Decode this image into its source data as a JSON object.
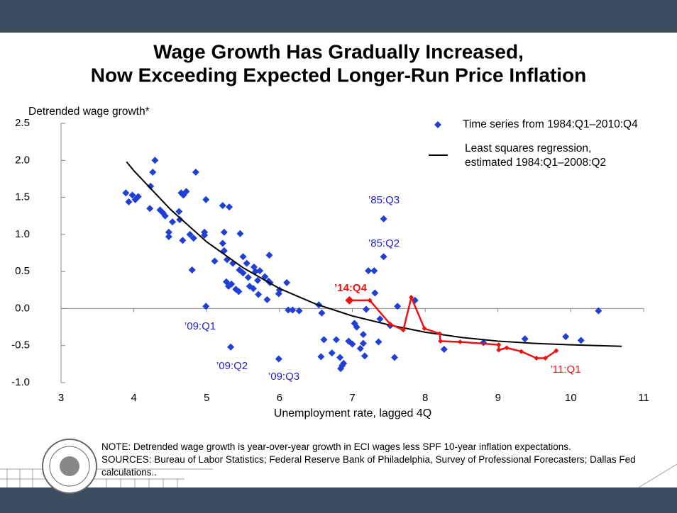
{
  "chart_data": {
    "type": "scatter",
    "title": [
      "Wage Growth Has Gradually Increased,",
      "Now Exceeding Expected Longer-Run Price Inflation"
    ],
    "y_label": "Detrended wage growth*",
    "x_label": "Unemployment rate, lagged 4Q",
    "note": "NOTE: Detrended wage growth is year-over-year growth in ECI wages less SPF 10-year inflation expectations.",
    "sources": "SOURCES: Bureau of Labor Statistics; Federal Reserve Bank of Philadelphia, Survey of Professional Forecasters; Dallas Fed calculations..",
    "xlim": [
      3,
      11
    ],
    "xticks": [
      3,
      4,
      5,
      6,
      7,
      8,
      9,
      10,
      11
    ],
    "ylim": [
      -1.0,
      2.5
    ],
    "yticks": [
      2.5,
      {
        "value": 2,
        "label": "2.0"
      },
      1.5,
      {
        "value": 1,
        "label": "1.0"
      },
      0.5,
      {
        "value": 0,
        "label": "0.0"
      },
      -0.5,
      {
        "value": -1,
        "label": "-1.0"
      }
    ],
    "series": [
      {
        "name": "Time series from 1984:Q1–2010:Q4",
        "mode": "markers",
        "color": "#1f3fd6",
        "x": [
          3.89,
          3.93,
          3.98,
          4.02,
          4.06,
          4.29,
          4.26,
          4.23,
          4.22,
          4.36,
          4.4,
          4.43,
          4.48,
          4.48,
          4.53,
          4.63,
          4.62,
          4.65,
          4.72,
          4.68,
          4.67,
          4.85,
          4.77,
          4.8,
          4.82,
          4.97,
          4.97,
          4.99,
          4.99,
          5.11,
          5.22,
          5.22,
          5.24,
          5.24,
          5.28,
          5.31,
          5.27,
          5.3,
          5.34,
          5.36,
          5.33,
          5.4,
          5.44,
          5.45,
          5.46,
          5.5,
          5.5,
          5.55,
          5.57,
          5.59,
          5.64,
          5.65,
          5.67,
          5.7,
          5.71,
          5.73,
          5.8,
          5.83,
          5.85,
          5.86,
          5.87,
          5.99,
          6.0,
          5.99,
          6.1,
          6.12,
          6.18,
          6.27,
          6.54,
          6.58,
          6.61,
          6.57,
          6.72,
          6.78,
          6.83,
          6.84,
          6.86,
          6.88,
          6.95,
          7.0,
          7.03,
          7.06,
          7.11,
          7.15,
          7.17,
          7.15,
          7.19,
          7.22,
          7.3,
          7.31,
          7.36,
          7.38,
          7.43,
          7.43,
          7.52,
          7.58,
          7.62,
          7.86,
          8.26,
          8.8,
          9.37,
          9.93,
          10.14,
          10.38
        ],
        "values": [
          1.56,
          1.44,
          1.53,
          1.47,
          1.51,
          2.0,
          1.84,
          1.65,
          1.35,
          1.33,
          1.29,
          1.25,
          1.03,
          0.97,
          1.17,
          1.2,
          1.31,
          1.56,
          1.58,
          1.53,
          0.92,
          1.84,
          1.0,
          0.52,
          0.95,
          1.03,
          0.99,
          1.47,
          0.03,
          0.64,
          1.39,
          0.88,
          1.03,
          0.78,
          0.66,
          1.37,
          0.36,
          0.3,
          0.33,
          0.61,
          -0.52,
          0.26,
          0.23,
          0.52,
          1.01,
          0.7,
          0.48,
          0.61,
          0.42,
          0.3,
          0.27,
          0.56,
          0.5,
          0.38,
          0.19,
          0.51,
          0.43,
          0.12,
          0.37,
          0.72,
          0.35,
          0.2,
          0.25,
          -0.68,
          0.35,
          -0.02,
          -0.02,
          -0.03,
          0.05,
          -0.06,
          -0.42,
          -0.65,
          -0.6,
          -0.42,
          -0.66,
          -0.81,
          -0.77,
          -0.74,
          -0.44,
          -0.48,
          -0.2,
          -0.25,
          -0.54,
          -0.47,
          -0.64,
          -0.35,
          -0.01,
          0.51,
          0.51,
          0.21,
          -0.45,
          -0.14,
          0.7,
          1.21,
          -0.23,
          -0.66,
          0.03,
          0.11,
          -0.55,
          -0.46,
          -0.41,
          -0.38,
          -0.43,
          -0.03
        ]
      },
      {
        "name": "Least squares regression, estimated 1984:Q1–2008:Q2",
        "mode": "line",
        "color": "#000000",
        "x": [
          3.9,
          4.0,
          4.5,
          5.0,
          5.5,
          6.0,
          6.5,
          7.0,
          7.5,
          8.0,
          8.5,
          9.0,
          9.5,
          10.0,
          10.7
        ],
        "values": [
          1.98,
          1.86,
          1.34,
          0.9,
          0.55,
          0.27,
          0.06,
          -0.1,
          -0.22,
          -0.32,
          -0.39,
          -0.44,
          -0.47,
          -0.49,
          -0.51
        ]
      },
      {
        "mode": "lines+markers",
        "color": "#ee1111",
        "x": [
          9.8,
          9.65,
          9.53,
          9.32,
          9.12,
          9.01,
          9.01,
          8.48,
          8.21,
          8.2,
          7.99,
          7.81,
          7.7,
          7.52,
          7.24,
          6.96
        ],
        "values": [
          -0.57,
          -0.67,
          -0.67,
          -0.58,
          -0.53,
          -0.56,
          -0.49,
          -0.45,
          -0.44,
          -0.34,
          -0.27,
          0.15,
          -0.29,
          -0.21,
          0.11,
          0.11
        ]
      }
    ],
    "annotations": [
      {
        "text": "’85:Q3",
        "color": "#2222cc"
      },
      {
        "text": "’85:Q2",
        "color": "#2222cc"
      },
      {
        "text": "’14:Q4",
        "color": "#ee1111",
        "bold": true
      },
      {
        "text": "’09:Q1",
        "color": "#2222cc"
      },
      {
        "text": "’09:Q2",
        "color": "#2222cc"
      },
      {
        "text": "’09:Q3",
        "color": "#2222cc"
      },
      {
        "text": "’11:Q1",
        "color": "#ee1111"
      }
    ]
  }
}
